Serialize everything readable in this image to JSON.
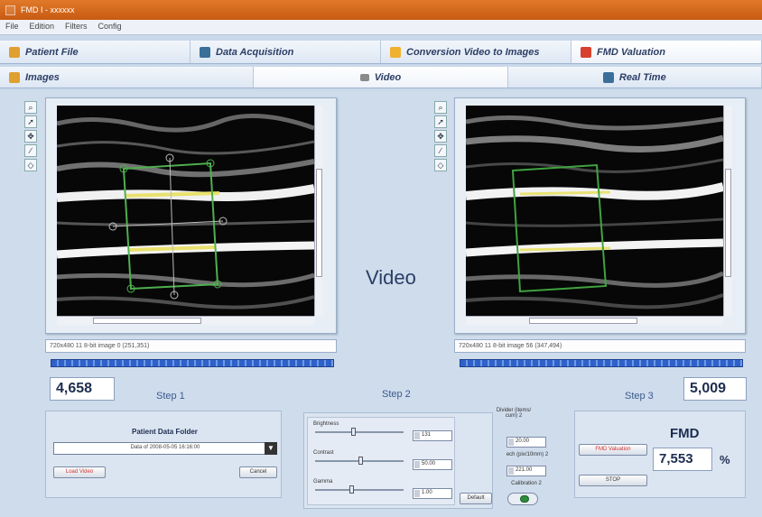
{
  "window": {
    "title": "FMD I - xxxxxx"
  },
  "menu": [
    "File",
    "Edition",
    "Filters",
    "Config"
  ],
  "main_tabs": [
    {
      "label": "Patient File",
      "icon": "folder-icon",
      "color": "#e0a030"
    },
    {
      "label": "Data Acquisition",
      "icon": "person-icon",
      "color": "#3a6f9a"
    },
    {
      "label": "Conversion Video to Images",
      "icon": "film-icon",
      "color": "#f0b030"
    },
    {
      "label": "FMD Valuation",
      "icon": "figure-icon",
      "color": "#d84030"
    }
  ],
  "sub_tabs": [
    {
      "label": "Images",
      "icon": "image-icon",
      "color": "#e0a030"
    },
    {
      "label": "Video",
      "icon": "camera-icon",
      "color": "#8a8a8a"
    },
    {
      "label": "Real Time",
      "icon": "person-icon",
      "color": "#3a6f9a"
    }
  ],
  "tools": [
    "zoom-icon",
    "pointer-icon",
    "pan-icon",
    "line-icon",
    "roi-icon"
  ],
  "left_view": {
    "info": "720x480 11 8-bit image 0   (251,351)",
    "value": "4,658",
    "step": "Step 1"
  },
  "center": {
    "video_label": "Video",
    "step": "Step 2"
  },
  "right_view": {
    "info": "720x480 11 8-bit image 56   (347,494)",
    "value": "5,009",
    "step": "Step 3"
  },
  "patient_panel": {
    "title": "Patient Data Folder",
    "selected": "Data of 2008-05-05 16:16:00",
    "load_label": "Load Video",
    "cancel_label": "Cancel"
  },
  "adjust_panel": {
    "sliders": [
      {
        "label": "Brightness",
        "value": "131",
        "level": 0.42
      },
      {
        "label": "Contrast",
        "value": "50.00",
        "level": 0.5
      },
      {
        "label": "Gamma",
        "value": "1.00",
        "level": 0.4
      }
    ],
    "default_label": "Default"
  },
  "calibration": {
    "divider_label": "Divider (items/ cum) 2",
    "divider_value": "20.00",
    "pixel_label": "ech (pix/10mm) 2",
    "pixel_value": "221.00",
    "calib_label": "Calibration 2"
  },
  "fmd_panel": {
    "title": "FMD",
    "value": "7,553",
    "unit": "%",
    "valuation_label": "FMD Valuation",
    "stop_label": "STOP"
  }
}
